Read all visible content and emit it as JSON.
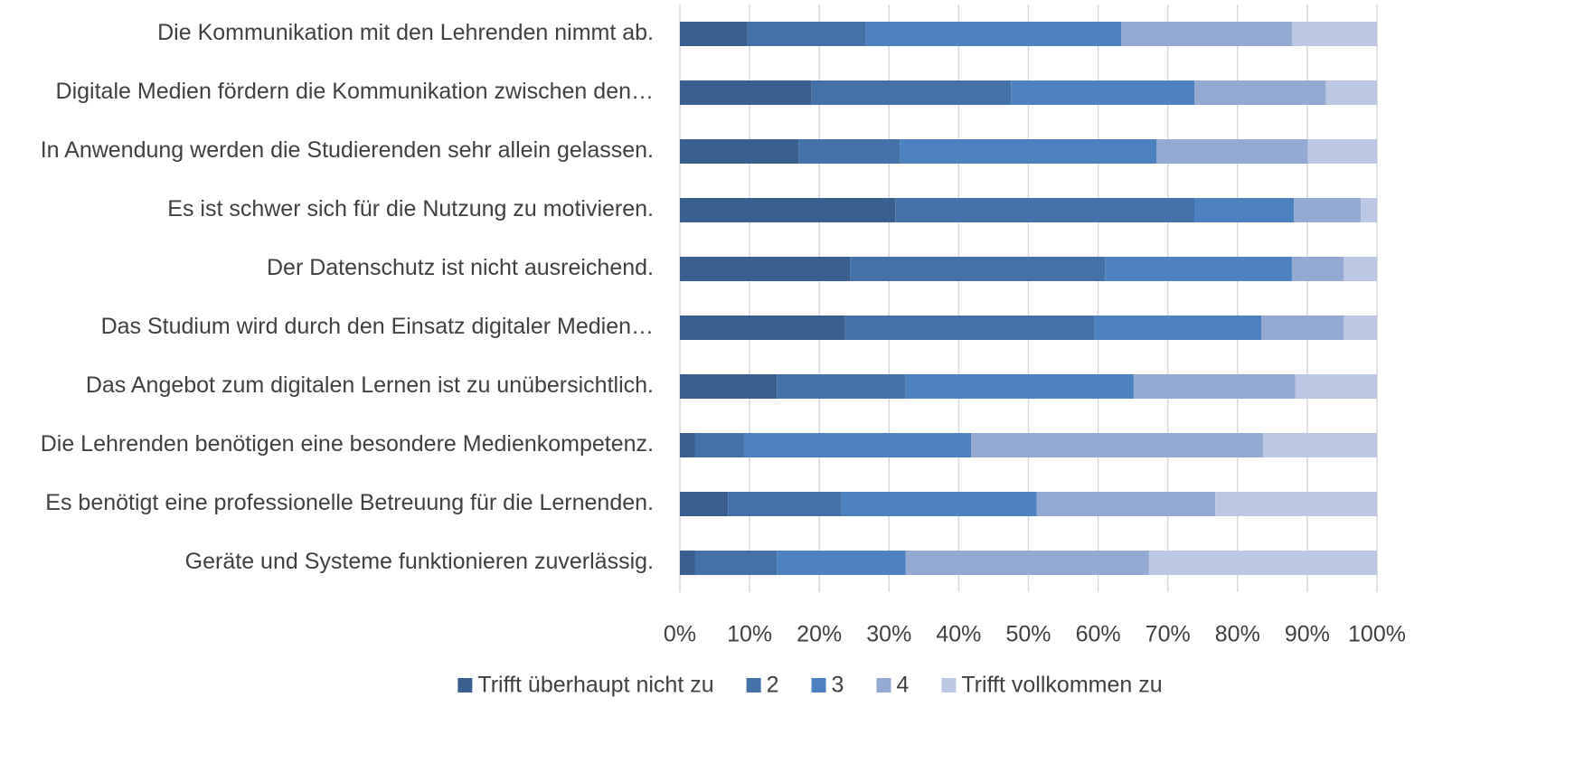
{
  "chart_data": {
    "type": "stacked_barh",
    "categories": [
      "Die Kommunikation mit den Lehrenden nimmt ab.",
      "Digitale Medien fördern die Kommunikation zwischen den…",
      "In Anwendung werden die Studierenden sehr allein gelassen.",
      "Es ist schwer sich für die Nutzung zu motivieren.",
      "Der Datenschutz ist nicht ausreichend.",
      "Das Studium wird durch den Einsatz digitaler Medien…",
      "Das Angebot zum digitalen Lernen ist zu unübersichtlich.",
      "Die Lehrenden benötigen eine besondere Medienkompetenz.",
      "Es benötigt eine professionelle Betreuung für die Lernenden.",
      "Geräte und Systeme funktionieren zuverlässig."
    ],
    "series": [
      {
        "name": "Trifft überhaupt nicht zu",
        "color": "#3a5f8f",
        "values": [
          9.6,
          18.9,
          17.0,
          30.9,
          24.4,
          23.7,
          13.9,
          2.2,
          6.9,
          2.2
        ]
      },
      {
        "name": "2",
        "color": "#4472a8",
        "values": [
          17.1,
          28.6,
          14.6,
          42.9,
          36.6,
          35.8,
          18.5,
          7.0,
          16.3,
          11.7
        ]
      },
      {
        "name": "3",
        "color": "#4d81c0",
        "values": [
          36.6,
          26.3,
          36.8,
          14.3,
          26.8,
          23.9,
          32.7,
          32.6,
          28.0,
          18.5
        ]
      },
      {
        "name": "4",
        "color": "#95aad3",
        "values": [
          24.5,
          18.9,
          21.7,
          9.6,
          7.4,
          11.8,
          23.2,
          41.9,
          25.6,
          34.9
        ]
      },
      {
        "name": "Trifft vollkommen zu",
        "color": "#bcc8e3",
        "values": [
          12.2,
          7.3,
          9.9,
          2.3,
          4.8,
          4.8,
          11.7,
          16.3,
          23.2,
          32.7
        ]
      }
    ],
    "xlim": [
      0,
      100
    ],
    "xticks": [
      {
        "value": 0,
        "label": "0%"
      },
      {
        "value": 10,
        "label": "10%"
      },
      {
        "value": 20,
        "label": "20%"
      },
      {
        "value": 30,
        "label": "30%"
      },
      {
        "value": 40,
        "label": "40%"
      },
      {
        "value": 50,
        "label": "50%"
      },
      {
        "value": 60,
        "label": "60%"
      },
      {
        "value": 70,
        "label": "70%"
      },
      {
        "value": 80,
        "label": "80%"
      },
      {
        "value": 90,
        "label": "90%"
      },
      {
        "value": 100,
        "label": "100%"
      }
    ],
    "grid": true,
    "legend": "bottom"
  }
}
